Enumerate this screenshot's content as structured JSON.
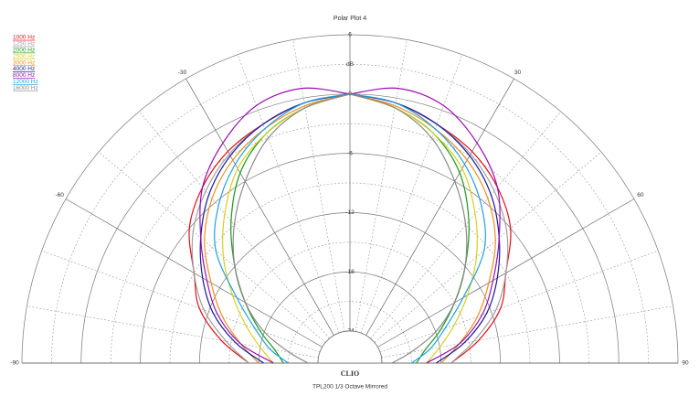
{
  "chart_data": {
    "type": "polar",
    "title": "Polar Plot 4",
    "brand": "CLIO",
    "caption": "TPL200  1/3 Octave  Mirrored",
    "radial_label": "dB",
    "mirror": true,
    "angles": [
      0,
      10,
      20,
      30,
      40,
      50,
      60,
      70,
      80,
      90
    ],
    "rlim": [
      -24,
      6
    ],
    "rticks": [
      6,
      0,
      -6,
      -12,
      -18,
      -24
    ],
    "rminor": [
      3,
      -3,
      -9,
      -15,
      -21
    ],
    "angle_ticks": [
      -90,
      -60,
      -30,
      30,
      60,
      90
    ],
    "angle_major": [
      -90,
      -60,
      -30,
      0,
      30,
      60,
      90
    ],
    "angle_minor": [
      -80,
      -70,
      -50,
      -40,
      -20,
      -10,
      10,
      20,
      40,
      50,
      70,
      80
    ],
    "series": [
      {
        "name": "1000 Hz",
        "color": "#e0101a",
        "values": [
          0,
          -0.5,
          -1.5,
          -2.5,
          -4,
          -6,
          -9,
          -11,
          -14,
          -17
        ]
      },
      {
        "name": "1250 Hz",
        "color": "#a0a0a0",
        "values": [
          0,
          -0.5,
          -1.5,
          -2.8,
          -4.5,
          -6.5,
          -9,
          -11.5,
          -14.5,
          -17
        ]
      },
      {
        "name": "2000 Hz",
        "color": "#1a9a1a",
        "values": [
          0,
          -1,
          -2.5,
          -5,
          -8.5,
          -12,
          -15,
          -17.5,
          -19.5,
          -20.5
        ]
      },
      {
        "name": "2500 Hz",
        "color": "#d8d020",
        "values": [
          0,
          -1,
          -2.5,
          -4.5,
          -7.5,
          -10.5,
          -13.5,
          -16,
          -18,
          -19.5
        ]
      },
      {
        "name": "3000 Hz",
        "color": "#f09020",
        "values": [
          0,
          -0.8,
          -2,
          -3.5,
          -5.5,
          -8,
          -11,
          -13.5,
          -16,
          -18
        ]
      },
      {
        "name": "4000 Hz",
        "color": "#1a1aa0",
        "values": [
          0,
          -0.5,
          -1.5,
          -3,
          -5,
          -7.5,
          -10,
          -12.5,
          -15.5,
          -18.5
        ]
      },
      {
        "name": "8000 Hz",
        "color": "#9a10b0",
        "values": [
          0,
          1,
          0.5,
          -1.5,
          -4,
          -7.5,
          -10.5,
          -13,
          -16,
          -19.5
        ]
      },
      {
        "name": "12000 Hz",
        "color": "#20a0e0",
        "values": [
          0,
          -0.5,
          -2,
          -4,
          -6.5,
          -9.5,
          -14,
          -17,
          -19,
          -21
        ]
      },
      {
        "name": "16000 Hz",
        "color": "#8a8a8a",
        "values": [
          0,
          -1,
          -3,
          -6,
          -9,
          -12,
          -15,
          -18,
          -21,
          -23
        ]
      }
    ]
  }
}
